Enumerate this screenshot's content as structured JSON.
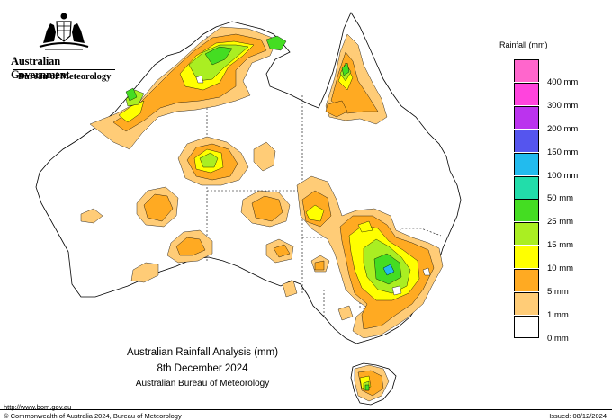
{
  "header": {
    "government": "Australian Government",
    "agency": "Bureau of Meteorology"
  },
  "legend": {
    "title": "Rainfall (mm)",
    "classes": [
      {
        "label": "",
        "color": "#ff66cc"
      },
      {
        "label": "400 mm",
        "color": "#ff44dd"
      },
      {
        "label": "300 mm",
        "color": "#bb33ee"
      },
      {
        "label": "200 mm",
        "color": "#5555ee"
      },
      {
        "label": "150 mm",
        "color": "#22bbee"
      },
      {
        "label": "100 mm",
        "color": "#22ddaa"
      },
      {
        "label": "50 mm",
        "color": "#44dd22"
      },
      {
        "label": "25 mm",
        "color": "#aaee22"
      },
      {
        "label": "15 mm",
        "color": "#ffff00"
      },
      {
        "label": "10 mm",
        "color": "#ffaa22"
      },
      {
        "label": "5 mm",
        "color": "#ffcc77"
      },
      {
        "label": "1 mm",
        "color": "#ffffff"
      },
      {
        "label": "0 mm",
        "color": ""
      }
    ]
  },
  "caption": {
    "line1": "Australian Rainfall Analysis (mm)",
    "line2": "8th December 2024",
    "line3": "Australian Bureau of Meteorology"
  },
  "footer": {
    "url": "http://www.bom.gov.au",
    "copyright": "© Commonwealth of Australia 2024, Bureau of Meteorology",
    "issued": "Issued: 08/12/2024"
  }
}
